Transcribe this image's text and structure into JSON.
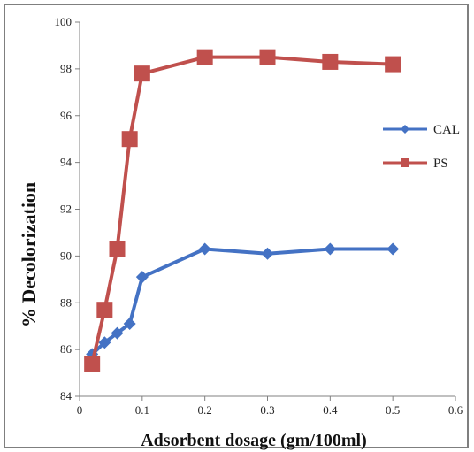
{
  "chart_data": {
    "type": "line",
    "xlabel": "Adsorbent dosage (gm/100ml)",
    "ylabel": "% Decolorization",
    "xlim": [
      0,
      0.6
    ],
    "ylim": [
      84,
      100
    ],
    "x_ticks": [
      0,
      0.1,
      0.2,
      0.3,
      0.4,
      0.5,
      0.6
    ],
    "y_ticks": [
      84,
      86,
      88,
      90,
      92,
      94,
      96,
      98,
      100
    ],
    "x_tick_labels": [
      "0",
      "0.1",
      "0.2",
      "0.3",
      "0.4",
      "0.5",
      "0.6"
    ],
    "y_tick_labels": [
      "84",
      "86",
      "88",
      "90",
      "92",
      "94",
      "96",
      "98",
      "100"
    ],
    "grid": false,
    "legend_position": "right",
    "series": [
      {
        "name": "CAL",
        "color": "#4472c4",
        "marker": "diamond",
        "x": [
          0.02,
          0.04,
          0.06,
          0.08,
          0.1,
          0.2,
          0.3,
          0.4,
          0.5
        ],
        "y": [
          85.8,
          86.3,
          86.7,
          87.1,
          89.1,
          90.3,
          90.1,
          90.3,
          90.3
        ]
      },
      {
        "name": "PS",
        "color": "#c0504d",
        "marker": "square",
        "x": [
          0.02,
          0.04,
          0.06,
          0.08,
          0.1,
          0.2,
          0.3,
          0.4,
          0.5
        ],
        "y": [
          85.4,
          87.7,
          90.3,
          95.0,
          97.8,
          98.5,
          98.5,
          98.3,
          98.2
        ]
      }
    ]
  }
}
